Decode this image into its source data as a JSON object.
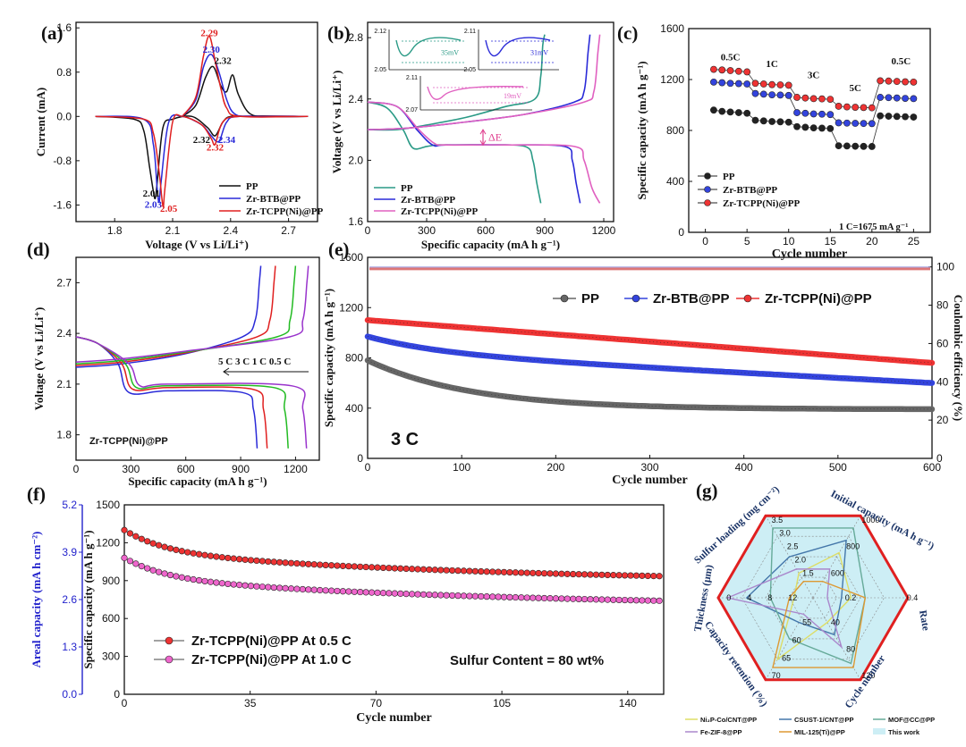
{
  "colors": {
    "black": "#111111",
    "blue": "#2a2ad8",
    "red": "#e02020",
    "teal": "#2a9a86",
    "pink": "#e060c0",
    "gray": "#555555",
    "green": "#22bb22",
    "purple": "#9933cc",
    "redmark": "#ee3333",
    "pinkmark": "#ee66cc"
  },
  "chart_data": [
    {
      "id": "a",
      "panel_label": "(a)",
      "type": "line",
      "xlabel": "Voltage (V vs Li/Li⁺)",
      "ylabel": "Current (mA)",
      "xlim": [
        1.6,
        2.85
      ],
      "ylim": [
        -1.9,
        1.7
      ],
      "xticks": [
        "1.8",
        "2.1",
        "2.4",
        "2.7"
      ],
      "yticks": [
        "-1.6",
        "-0.8",
        "0.0",
        "0.8",
        "1.6"
      ],
      "legend": [
        "PP",
        "Zr-BTB@PP",
        "Zr-TCPP(Ni)@PP"
      ],
      "annotations": [
        {
          "text": "2.29",
          "x": 2.29,
          "y": 1.45,
          "color": "red"
        },
        {
          "text": "2.30",
          "x": 2.3,
          "y": 1.15,
          "color": "blue"
        },
        {
          "text": "2.32",
          "x": 2.36,
          "y": 0.95,
          "color": "black"
        },
        {
          "text": "2.32",
          "x": 2.25,
          "y": -0.48,
          "color": "black"
        },
        {
          "text": "2.34",
          "x": 2.38,
          "y": -0.48,
          "color": "blue"
        },
        {
          "text": "2.32",
          "x": 2.32,
          "y": -0.62,
          "color": "red"
        },
        {
          "text": "2.01",
          "x": 1.99,
          "y": -1.45,
          "color": "black"
        },
        {
          "text": "2.03",
          "x": 2.0,
          "y": -1.65,
          "color": "blue"
        },
        {
          "text": "2.05",
          "x": 2.08,
          "y": -1.72,
          "color": "red"
        }
      ],
      "series": [
        {
          "name": "PP",
          "color": "black",
          "x": [
            1.7,
            1.9,
            1.95,
            1.98,
            2.0,
            2.01,
            2.02,
            2.05,
            2.1,
            2.2,
            2.28,
            2.32,
            2.36,
            2.4,
            2.5,
            2.8
          ],
          "y": [
            0,
            -0.05,
            -0.25,
            -0.9,
            -1.35,
            -1.48,
            -1.2,
            -0.2,
            -0.05,
            0,
            -0.2,
            -0.35,
            -0.1,
            0,
            0,
            0
          ]
        },
        {
          "name": "Zr-BTB@PP",
          "color": "blue",
          "x": [
            1.7,
            1.95,
            2.0,
            2.02,
            2.03,
            2.04,
            2.08,
            2.15,
            2.25,
            2.3,
            2.34,
            2.38,
            2.45,
            2.8
          ],
          "y": [
            0,
            -0.05,
            -0.5,
            -1.3,
            -1.55,
            -1.2,
            -0.1,
            0,
            -0.15,
            -0.35,
            -0.45,
            -0.1,
            0,
            0
          ]
        },
        {
          "name": "Zr-TCPP(Ni)@PP",
          "color": "red",
          "x": [
            1.7,
            1.95,
            2.0,
            2.03,
            2.05,
            2.06,
            2.1,
            2.15,
            2.25,
            2.3,
            2.32,
            2.36,
            2.45,
            2.8
          ],
          "y": [
            0,
            -0.05,
            -0.3,
            -1.0,
            -1.62,
            -1.3,
            -0.1,
            0,
            -0.15,
            -0.4,
            -0.5,
            -0.1,
            0,
            0
          ]
        },
        {
          "name": "PP anodic",
          "color": "black",
          "x": [
            2.15,
            2.22,
            2.27,
            2.31,
            2.35,
            2.38,
            2.41,
            2.44,
            2.5,
            2.6,
            2.8
          ],
          "y": [
            0,
            0.2,
            0.7,
            0.9,
            0.55,
            0.45,
            0.75,
            0.4,
            0.05,
            0,
            0
          ]
        },
        {
          "name": "Zr-BTB anodic",
          "color": "blue",
          "x": [
            2.15,
            2.22,
            2.26,
            2.3,
            2.34,
            2.38,
            2.42,
            2.5,
            2.8
          ],
          "y": [
            0,
            0.3,
            0.9,
            1.12,
            0.8,
            0.3,
            0.05,
            0,
            0
          ]
        },
        {
          "name": "Zr-TCPP anodic",
          "color": "red",
          "x": [
            2.15,
            2.22,
            2.26,
            2.29,
            2.32,
            2.35,
            2.38,
            2.45,
            2.8
          ],
          "y": [
            0,
            0.35,
            1.1,
            1.45,
            1.0,
            0.5,
            0.15,
            0,
            0
          ]
        }
      ]
    },
    {
      "id": "b",
      "panel_label": "(b)",
      "type": "line",
      "xlabel": "Specific capacity (mA h g⁻¹)",
      "ylabel": "Voltage (V vs Li/Li⁺)",
      "xlim": [
        0,
        1250
      ],
      "ylim": [
        1.6,
        2.9
      ],
      "xticks": [
        "0",
        "300",
        "600",
        "900",
        "1200"
      ],
      "yticks": [
        "1.6",
        "2.0",
        "2.4",
        "2.8"
      ],
      "legend": [
        "PP",
        "Zr-BTB@PP",
        "Zr-TCPP(Ni)@PP"
      ],
      "delta_label": "ΔE",
      "insets": [
        {
          "ytop": "2.12",
          "ybottom": "2.05",
          "label": "35mV",
          "color": "teal"
        },
        {
          "ytop": "2.11",
          "ybottom": "2.05",
          "label": "31mV",
          "color": "blue"
        },
        {
          "ytop": "2.11",
          "ybottom": "2.07",
          "label": "19mV",
          "color": "pink"
        }
      ],
      "series": [
        {
          "name": "PP discharge",
          "color": "teal",
          "x": [
            0,
            100,
            180,
            230,
            300,
            350,
            400,
            600,
            800,
            840,
            860,
            880
          ],
          "y": [
            2.38,
            2.34,
            2.2,
            2.08,
            2.09,
            2.1,
            2.1,
            2.1,
            2.09,
            2.0,
            1.85,
            1.72
          ]
        },
        {
          "name": "PP charge",
          "color": "teal",
          "x": [
            0,
            150,
            300,
            500,
            700,
            850,
            880,
            890,
            900
          ],
          "y": [
            2.2,
            2.2,
            2.23,
            2.28,
            2.35,
            2.4,
            2.55,
            2.75,
            2.82
          ]
        },
        {
          "name": "Zr-BTB discharge",
          "color": "blue",
          "x": [
            0,
            150,
            250,
            330,
            400,
            700,
            1000,
            1040,
            1060,
            1080
          ],
          "y": [
            2.38,
            2.35,
            2.2,
            2.1,
            2.1,
            2.1,
            2.09,
            2.0,
            1.85,
            1.72
          ]
        },
        {
          "name": "Zr-BTB charge",
          "color": "blue",
          "x": [
            0,
            200,
            500,
            800,
            1050,
            1100,
            1120,
            1130
          ],
          "y": [
            2.2,
            2.21,
            2.25,
            2.3,
            2.38,
            2.45,
            2.7,
            2.82
          ]
        },
        {
          "name": "Zr-TCPP discharge",
          "color": "pink",
          "x": [
            0,
            150,
            260,
            340,
            400,
            700,
            1050,
            1100,
            1140,
            1180
          ],
          "y": [
            2.38,
            2.35,
            2.2,
            2.11,
            2.1,
            2.1,
            2.09,
            2.0,
            1.82,
            1.72
          ]
        },
        {
          "name": "Zr-TCPP charge",
          "color": "pink",
          "x": [
            0,
            200,
            500,
            800,
            1100,
            1150,
            1170,
            1180
          ],
          "y": [
            2.2,
            2.21,
            2.25,
            2.3,
            2.38,
            2.45,
            2.7,
            2.82
          ]
        }
      ]
    },
    {
      "id": "c",
      "panel_label": "(c)",
      "type": "scatter",
      "xlabel": "Cycle number",
      "ylabel": "Specific capacity (mA h g⁻¹)",
      "xlim": [
        -2,
        27
      ],
      "ylim": [
        0,
        1600
      ],
      "xticks": [
        "0",
        "5",
        "10",
        "15",
        "20",
        "25"
      ],
      "yticks": [
        "0",
        "400",
        "800",
        "1200",
        "1600"
      ],
      "legend": [
        "PP",
        "Zr-BTB@PP",
        "Zr-TCPP(Ni)@PP"
      ],
      "note": "1 C=1675 mA g⁻¹",
      "rate_labels": [
        {
          "text": "0.5C",
          "x": 3,
          "y": 1350
        },
        {
          "text": "1C",
          "x": 8,
          "y": 1300
        },
        {
          "text": "3C",
          "x": 13,
          "y": 1210
        },
        {
          "text": "5C",
          "x": 18,
          "y": 1110
        },
        {
          "text": "0.5C",
          "x": 23.5,
          "y": 1320
        }
      ],
      "series": [
        {
          "name": "PP",
          "color": "black",
          "values": [
            960,
            950,
            945,
            940,
            935,
            880,
            875,
            870,
            868,
            865,
            830,
            825,
            820,
            818,
            815,
            680,
            678,
            676,
            675,
            674,
            915,
            912,
            910,
            908,
            905
          ]
        },
        {
          "name": "Zr-BTB@PP",
          "color": "blue",
          "values": [
            1180,
            1175,
            1170,
            1168,
            1165,
            1090,
            1085,
            1080,
            1078,
            1075,
            940,
            935,
            930,
            928,
            925,
            860,
            858,
            856,
            855,
            854,
            1060,
            1058,
            1055,
            1052,
            1050
          ]
        },
        {
          "name": "Zr-TCPP(Ni)@PP",
          "color": "red",
          "values": [
            1280,
            1275,
            1270,
            1265,
            1260,
            1170,
            1165,
            1160,
            1158,
            1155,
            1060,
            1055,
            1050,
            1048,
            1045,
            990,
            985,
            982,
            980,
            978,
            1190,
            1188,
            1185,
            1182,
            1180
          ]
        }
      ]
    },
    {
      "id": "d",
      "panel_label": "(d)",
      "type": "line",
      "xlabel": "Specific capacity (mA h g⁻¹)",
      "ylabel": "Voltage (V vs Li/Li⁺)",
      "xlim": [
        0,
        1330
      ],
      "ylim": [
        1.65,
        2.85
      ],
      "xticks": [
        "0",
        "300",
        "600",
        "900",
        "1200"
      ],
      "yticks": [
        "1.8",
        "2.1",
        "2.4",
        "2.7"
      ],
      "legend_text": "5 C  3 C  1 C  0.5 C",
      "sample_label": "Zr-TCPP(Ni)@PP",
      "series": [
        {
          "name": "5 C",
          "color": "blue",
          "discharge_end": 990,
          "charge_end": 1010,
          "plateau": 2.05
        },
        {
          "name": "3 C",
          "color": "red",
          "discharge_end": 1045,
          "charge_end": 1090,
          "plateau": 2.07
        },
        {
          "name": "1 C",
          "color": "green",
          "discharge_end": 1160,
          "charge_end": 1200,
          "plateau": 2.08
        },
        {
          "name": "0.5 C",
          "color": "purple",
          "discharge_end": 1260,
          "charge_end": 1270,
          "plateau": 2.09
        }
      ]
    },
    {
      "id": "e",
      "panel_label": "(e)",
      "type": "scatter",
      "xlabel": "Cycle number",
      "ylabel": "Specific capacity (mA h g⁻¹)",
      "y2label": "Coulombic efficiency (%)",
      "xlim": [
        0,
        600
      ],
      "ylim": [
        0,
        1600
      ],
      "y2lim": [
        0,
        105
      ],
      "xticks": [
        "0",
        "100",
        "200",
        "300",
        "400",
        "500",
        "600"
      ],
      "yticks": [
        "0",
        "400",
        "800",
        "1200",
        "1600"
      ],
      "y2ticks": [
        "0",
        "20",
        "40",
        "60",
        "80",
        "100"
      ],
      "legend": [
        "PP",
        "Zr-BTB@PP",
        "Zr-TCPP(Ni)@PP"
      ],
      "rate_label": "3 C",
      "series": [
        {
          "name": "PP",
          "color": "gray",
          "start": 780,
          "end": 390,
          "shape": "fast-decay"
        },
        {
          "name": "Zr-BTB@PP",
          "color": "blue",
          "start": 970,
          "end": 600,
          "shape": "decay"
        },
        {
          "name": "Zr-TCPP(Ni)@PP",
          "color": "red",
          "start": 1100,
          "end": 760,
          "shape": "linear"
        }
      ],
      "efficiency": 99
    },
    {
      "id": "f",
      "panel_label": "(f)",
      "type": "scatter",
      "xlabel": "Cycle number",
      "ylabel": "Specific capacity (mA h g⁻¹)",
      "y2label": "Areal capacity (mA h cm⁻²)",
      "xlim": [
        0,
        150
      ],
      "ylim": [
        0,
        1500
      ],
      "y2lim": [
        0,
        5.2
      ],
      "xticks": [
        "0",
        "35",
        "70",
        "105",
        "140"
      ],
      "yticks": [
        "0",
        "300",
        "600",
        "900",
        "1200",
        "1500"
      ],
      "y2ticks": [
        "0.0",
        "1.3",
        "2.6",
        "3.9",
        "5.2"
      ],
      "legend": [
        "Zr-TCPP(Ni)@PP At 0.5 C",
        "Zr-TCPP(Ni)@PP At 1.0 C"
      ],
      "note": "Sulfur Content = 80 wt%",
      "series": [
        {
          "name": "Zr-TCPP(Ni)@PP At 0.5 C",
          "color": "red",
          "start": 1300,
          "end": 935
        },
        {
          "name": "Zr-TCPP(Ni)@PP At 1.0 C",
          "color": "pink",
          "start": 1080,
          "end": 740
        }
      ]
    },
    {
      "id": "g",
      "panel_label": "(g)",
      "type": "radar",
      "axes": [
        "Initial capacity (mA h g⁻¹)",
        "Rate",
        "Cycle number",
        "Capacity retention (%)",
        "Thickness (μm)",
        "Sulfur loading (mg cm⁻²)"
      ],
      "axis_ticks": [
        [
          "600",
          "800",
          "1000"
        ],
        [
          "0.2",
          "0.4"
        ],
        [
          "40",
          "80",
          "120"
        ],
        [
          "55",
          "60",
          "65",
          "70"
        ],
        [
          "12",
          "8",
          "4",
          "0"
        ],
        [
          "1.5",
          "2.0",
          "2.5",
          "3.0",
          "3.5"
        ]
      ],
      "legend": [
        "Ni₂P-Co/CNT@PP",
        "CSUST-1/CNT@PP",
        "MOF@CC@PP",
        "Fe-ZIF-8@PP",
        "MIL-125(Ti)@PP",
        "This work"
      ],
      "series": [
        {
          "name": "Ni₂P-Co/CNT@PP",
          "color": "#dddd66",
          "values": [
            0.55,
            0.4,
            0.3,
            0.75,
            0.2,
            0.3
          ]
        },
        {
          "name": "CSUST-1/CNT@PP",
          "color": "#4477aa",
          "values": [
            0.7,
            0.3,
            0.45,
            0.3,
            0.7,
            0.5
          ]
        },
        {
          "name": "MOF@CC@PP",
          "color": "#66aa99",
          "values": [
            0.85,
            0.55,
            0.8,
            0.5,
            0.45,
            0.85
          ]
        },
        {
          "name": "Fe-ZIF-8@PP",
          "color": "#aa88cc",
          "values": [
            0.35,
            0.15,
            0.6,
            0.2,
            0.9,
            0.35
          ]
        },
        {
          "name": "MIL-125(Ti)@PP",
          "color": "#dd9933",
          "values": [
            0.2,
            0.55,
            0.85,
            0.85,
            0.25,
            0.2
          ]
        },
        {
          "name": "This work",
          "color": "#e02020",
          "values": [
            1,
            1,
            1,
            1,
            1,
            1
          ]
        }
      ]
    }
  ]
}
